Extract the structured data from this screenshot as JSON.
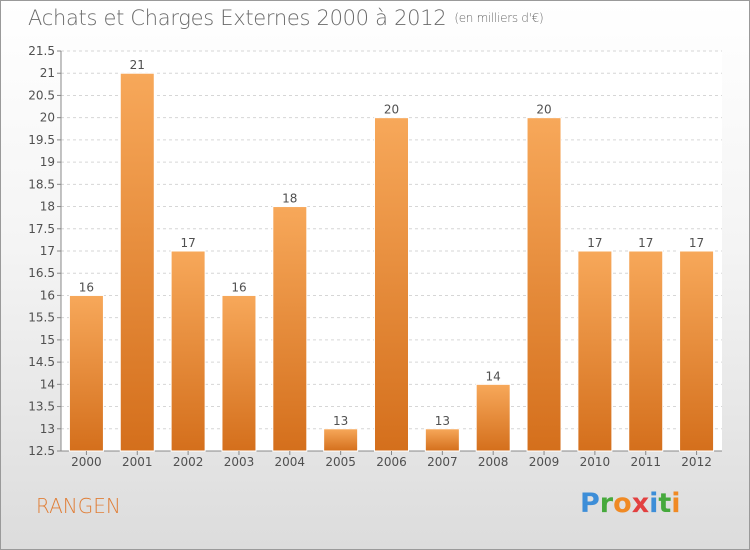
{
  "header": {
    "title": "Achats et Charges Externes 2000 à 2012",
    "subtitle": "(en milliers d'€)"
  },
  "footer": {
    "place": "RANGEN",
    "logo_letters": [
      "P",
      "r",
      "o",
      "x",
      "i",
      "t",
      "i"
    ]
  },
  "colors": {
    "bar_top": "#f7a85a",
    "bar_bottom": "#d46f1c",
    "place_text": "#e07f38"
  },
  "chart_data": {
    "type": "bar",
    "categories": [
      "2000",
      "2001",
      "2002",
      "2003",
      "2004",
      "2005",
      "2006",
      "2007",
      "2008",
      "2009",
      "2010",
      "2011",
      "2012"
    ],
    "values": [
      16,
      21,
      17,
      16,
      18,
      13,
      20,
      13,
      14,
      20,
      17,
      17,
      17
    ],
    "data_labels": [
      "16",
      "21",
      "17",
      "16",
      "18",
      "13",
      "20",
      "13",
      "14",
      "20",
      "17",
      "17",
      "17"
    ],
    "title": "Achats et Charges Externes 2000 à 2012",
    "subtitle": "(en milliers d'€)",
    "xlabel": "",
    "ylabel": "",
    "ylim": [
      12.5,
      21.5
    ],
    "yticks": [
      "12.5",
      "13",
      "13.5",
      "14",
      "14.5",
      "15",
      "15.5",
      "16",
      "16.5",
      "17",
      "17.5",
      "18",
      "18.5",
      "19",
      "19.5",
      "20",
      "20.5",
      "21",
      "21.5"
    ],
    "grid": true
  }
}
